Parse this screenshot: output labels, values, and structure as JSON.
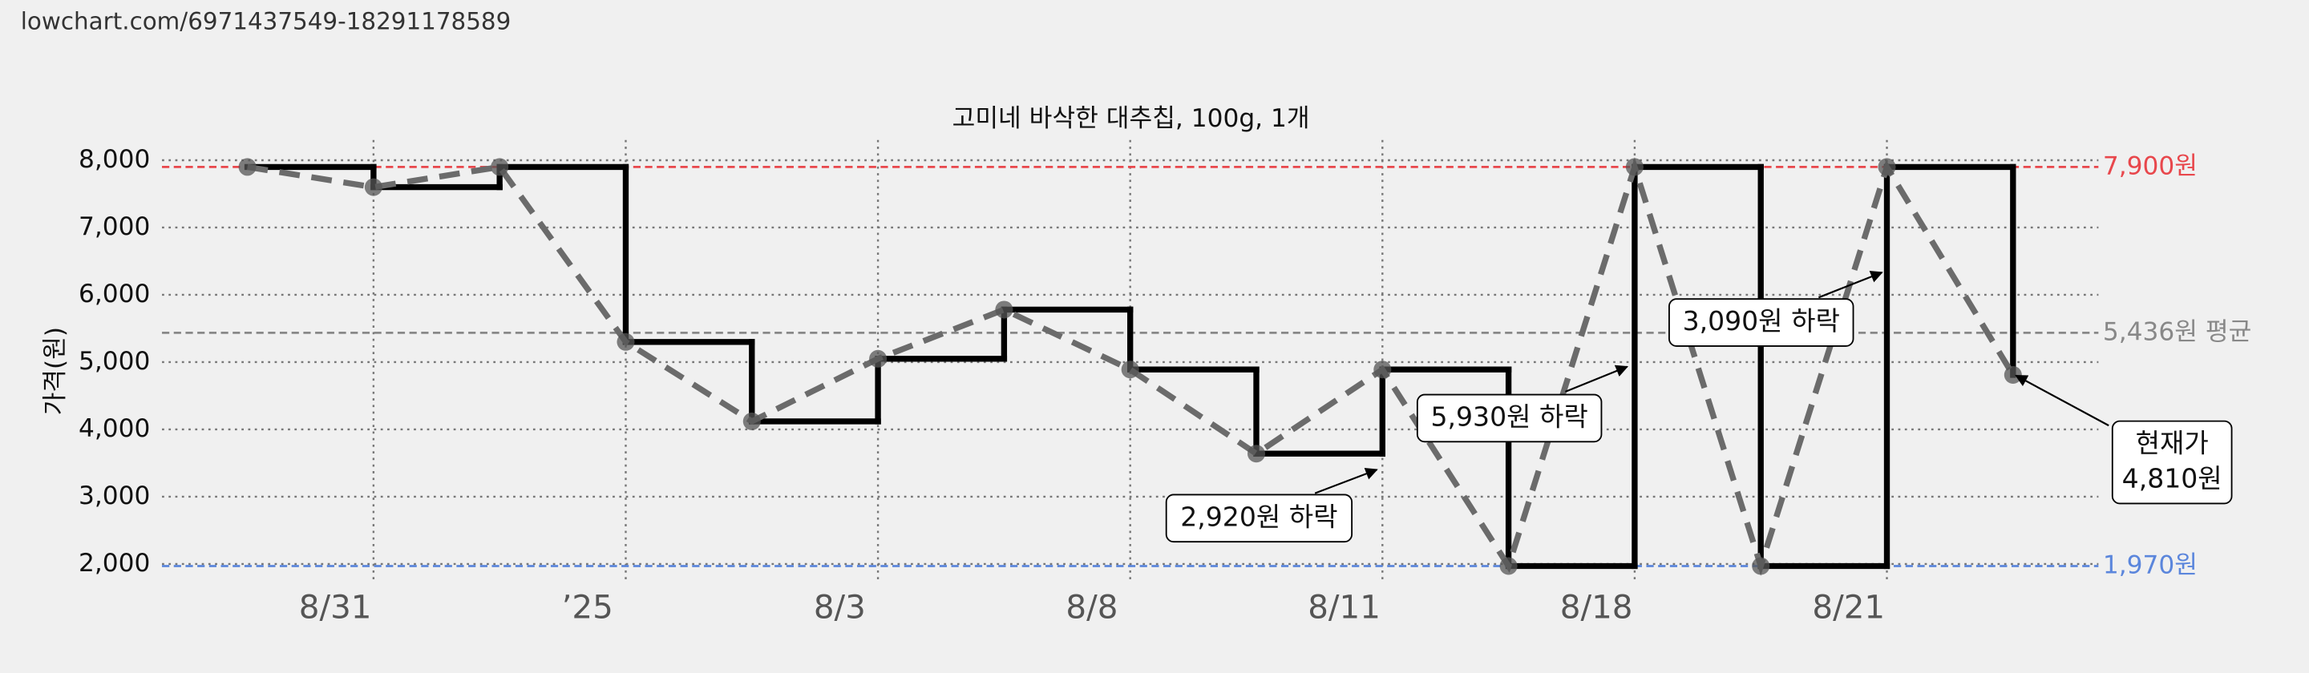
{
  "url": "lowchart.com/6971437549-18291178589",
  "chart_data": {
    "type": "line",
    "step": true,
    "title": "고미네 바삭한 대추칩, 100g, 1개",
    "y_label": "가격(원)",
    "categories": [
      null,
      "8/31",
      null,
      "’25",
      null,
      "8/3",
      null,
      "8/8",
      null,
      "8/11",
      null,
      "8/18",
      null,
      "8/21",
      null
    ],
    "values": [
      7900,
      7600,
      7900,
      5300,
      4120,
      5050,
      5780,
      4890,
      3640,
      4890,
      1970,
      7900,
      1970,
      7900,
      4810
    ],
    "color": "#000000",
    "dash_color": "#6b6b6b",
    "ylim": [
      1740,
      8300
    ],
    "yticks": [
      {
        "value": 2000,
        "label": "2,000"
      },
      {
        "value": 3000,
        "label": "3,000"
      },
      {
        "value": 4000,
        "label": "4,000"
      },
      {
        "value": 5000,
        "label": "5,000"
      },
      {
        "value": 6000,
        "label": "6,000"
      },
      {
        "value": 7000,
        "label": "7,000"
      },
      {
        "value": 8000,
        "label": "8,000"
      }
    ],
    "grid": true,
    "hlines": [
      {
        "value": 7900,
        "label": "7,900원",
        "color": "#e8474c"
      },
      {
        "value": 5436,
        "label": "5,436원 평균",
        "color": "#888888"
      },
      {
        "value": 1970,
        "label": "1,970원",
        "color": "#5b86dc"
      }
    ],
    "annotations": [
      {
        "lines": [
          "2,920원 하락"
        ]
      },
      {
        "lines": [
          "5,930원 하락"
        ]
      },
      {
        "lines": [
          "3,090원 하락"
        ]
      },
      {
        "lines": [
          "현재가",
          "4,810원"
        ]
      }
    ]
  }
}
